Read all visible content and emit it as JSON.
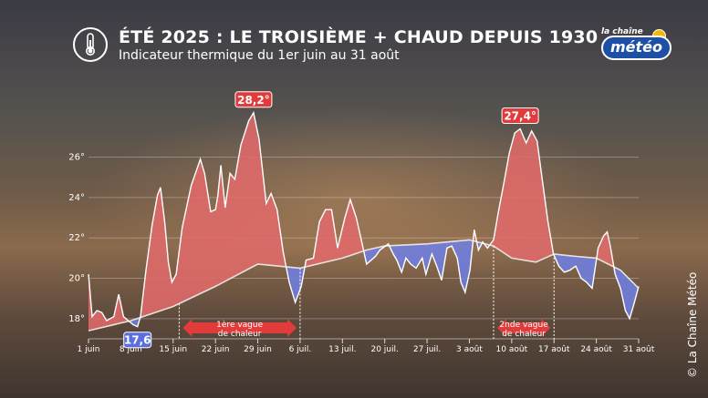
{
  "header": {
    "title": "ÉTÉ 2025 : LE TROISIÈME + CHAUD DEPUIS 1930",
    "subtitle": "Indicateur thermique du 1er juin au 31 août",
    "thermometer_icon": "thermometer-icon"
  },
  "logo": {
    "top": "la chaîne",
    "main": "météo"
  },
  "credit": "© La Chaîne Météo",
  "chart_data": {
    "type": "area",
    "ylim": [
      17,
      29.5
    ],
    "y_ticks": [
      18,
      20,
      22,
      24,
      26
    ],
    "y_tick_labels": [
      "18°",
      "20°",
      "22°",
      "24°",
      "26°"
    ],
    "x_ticks": [
      {
        "day": 0,
        "label": "1 juin"
      },
      {
        "day": 7,
        "label": "8 juin"
      },
      {
        "day": 14,
        "label": "15 juin"
      },
      {
        "day": 21,
        "label": "22 juin"
      },
      {
        "day": 28,
        "label": "29 juin"
      },
      {
        "day": 35,
        "label": "6 juil."
      },
      {
        "day": 42,
        "label": "13 juil."
      },
      {
        "day": 49,
        "label": "20 juil."
      },
      {
        "day": 56,
        "label": "27 juil."
      },
      {
        "day": 63,
        "label": "3 août"
      },
      {
        "day": 70,
        "label": "10 août"
      },
      {
        "day": 77,
        "label": "17 août"
      },
      {
        "day": 84,
        "label": "24 août"
      },
      {
        "day": 91,
        "label": "31 août"
      }
    ],
    "series": [
      {
        "key": "observed",
        "points": [
          [
            0,
            20.2
          ],
          [
            0.6,
            18.1
          ],
          [
            1.4,
            18.4
          ],
          [
            2.2,
            18.3
          ],
          [
            3,
            17.9
          ],
          [
            4.2,
            18.1
          ],
          [
            5,
            19.2
          ],
          [
            5.8,
            18.1
          ],
          [
            6.6,
            17.9
          ],
          [
            7.4,
            17.7
          ],
          [
            8.1,
            17.6
          ],
          [
            8.6,
            18.1
          ],
          [
            9.5,
            20.4
          ],
          [
            10.5,
            22.6
          ],
          [
            11.4,
            24.1
          ],
          [
            11.9,
            24.5
          ],
          [
            12.6,
            22.8
          ],
          [
            13.2,
            20.8
          ],
          [
            13.8,
            19.8
          ],
          [
            14.5,
            20.2
          ],
          [
            15.5,
            22.5
          ],
          [
            17,
            24.6
          ],
          [
            18.5,
            25.9
          ],
          [
            19.2,
            25.2
          ],
          [
            20.2,
            23.3
          ],
          [
            21,
            23.4
          ],
          [
            21.4,
            24.1
          ],
          [
            21.9,
            25.6
          ],
          [
            22.6,
            23.5
          ],
          [
            23.4,
            25.2
          ],
          [
            24.2,
            24.9
          ],
          [
            25.2,
            26.6
          ],
          [
            26.5,
            27.8
          ],
          [
            27.3,
            28.2
          ],
          [
            28.2,
            26.9
          ],
          [
            29.4,
            23.7
          ],
          [
            30.2,
            24.2
          ],
          [
            31.2,
            23.4
          ],
          [
            32.2,
            21.3
          ],
          [
            33.2,
            19.8
          ],
          [
            34.2,
            18.8
          ],
          [
            35.2,
            19.6
          ],
          [
            36,
            20.9
          ],
          [
            37.2,
            21.0
          ],
          [
            38.2,
            22.8
          ],
          [
            39.2,
            23.4
          ],
          [
            40.2,
            23.4
          ],
          [
            41.2,
            21.5
          ],
          [
            42.4,
            23.0
          ],
          [
            43.3,
            23.9
          ],
          [
            44.3,
            23.0
          ],
          [
            45.2,
            21.8
          ],
          [
            46,
            20.7
          ],
          [
            47.5,
            21.1
          ],
          [
            48.2,
            21.4
          ],
          [
            49.6,
            21.7
          ],
          [
            50.4,
            21.2
          ],
          [
            51,
            20.9
          ],
          [
            51.8,
            20.3
          ],
          [
            52.5,
            21.0
          ],
          [
            53.3,
            20.7
          ],
          [
            54.2,
            20.5
          ],
          [
            55.2,
            21.0
          ],
          [
            55.8,
            20.2
          ],
          [
            56.8,
            21.2
          ],
          [
            57.6,
            20.6
          ],
          [
            58.4,
            19.9
          ],
          [
            59.3,
            21.5
          ],
          [
            60.1,
            21.6
          ],
          [
            61,
            21.0
          ],
          [
            61.6,
            19.8
          ],
          [
            62.3,
            19.3
          ],
          [
            63.1,
            20.4
          ],
          [
            63.8,
            22.4
          ],
          [
            64.5,
            21.4
          ],
          [
            65.2,
            21.8
          ],
          [
            66,
            21.5
          ],
          [
            67,
            21.9
          ],
          [
            67.8,
            23.3
          ],
          [
            68.7,
            24.7
          ],
          [
            69.6,
            26.2
          ],
          [
            70.5,
            27.2
          ],
          [
            71.4,
            27.4
          ],
          [
            72.4,
            26.7
          ],
          [
            73.3,
            27.3
          ],
          [
            74.2,
            26.8
          ],
          [
            75.1,
            24.8
          ],
          [
            76,
            22.8
          ],
          [
            76.9,
            21.2
          ],
          [
            77.8,
            20.6
          ],
          [
            78.7,
            20.3
          ],
          [
            79.6,
            20.4
          ],
          [
            80.6,
            20.6
          ],
          [
            81.5,
            20.0
          ],
          [
            82.4,
            19.8
          ],
          [
            83.3,
            19.5
          ],
          [
            84.3,
            21.5
          ],
          [
            85.2,
            22.1
          ],
          [
            85.8,
            22.3
          ],
          [
            86.3,
            21.6
          ],
          [
            87.1,
            20.2
          ],
          [
            88,
            19.5
          ],
          [
            88.8,
            18.4
          ],
          [
            89.5,
            18.0
          ],
          [
            90.2,
            18.7
          ],
          [
            91,
            19.6
          ]
        ]
      },
      {
        "key": "normal",
        "points": [
          [
            0,
            17.4
          ],
          [
            7,
            17.9
          ],
          [
            14,
            18.6
          ],
          [
            21,
            19.6
          ],
          [
            28,
            20.7
          ],
          [
            35,
            20.5
          ],
          [
            42,
            21.0
          ],
          [
            46,
            21.4
          ],
          [
            49,
            21.6
          ],
          [
            56,
            21.7
          ],
          [
            63,
            21.9
          ],
          [
            67,
            21.6
          ],
          [
            70,
            21.0
          ],
          [
            74,
            20.8
          ],
          [
            77,
            21.2
          ],
          [
            80,
            21.1
          ],
          [
            84,
            21.0
          ],
          [
            88,
            20.4
          ],
          [
            91,
            19.5
          ]
        ]
      }
    ],
    "extremes": [
      {
        "day": 27.3,
        "value": 28.2,
        "label": "28,2°",
        "kind": "max"
      },
      {
        "day": 71.4,
        "value": 27.4,
        "label": "27,4°",
        "kind": "max"
      },
      {
        "day": 8.1,
        "value": 17.6,
        "label": "17,6",
        "kind": "min"
      }
    ],
    "heatwaves": [
      {
        "start": 15,
        "end": 35,
        "label_line1": "1ère vague",
        "label_line2": "de chaleur"
      },
      {
        "start": 67,
        "end": 77,
        "label_line1": "2nde vague",
        "label_line2": "de chaleur"
      }
    ],
    "colors": {
      "warm_fill": "#e06a6a",
      "cool_fill": "#6f7ee0",
      "line": "#ffffff",
      "normal_line": "#e8e2dc",
      "callout": "#e23b3b",
      "min_callout": "#5a6ee0",
      "arrow": "#e23b3b"
    }
  }
}
